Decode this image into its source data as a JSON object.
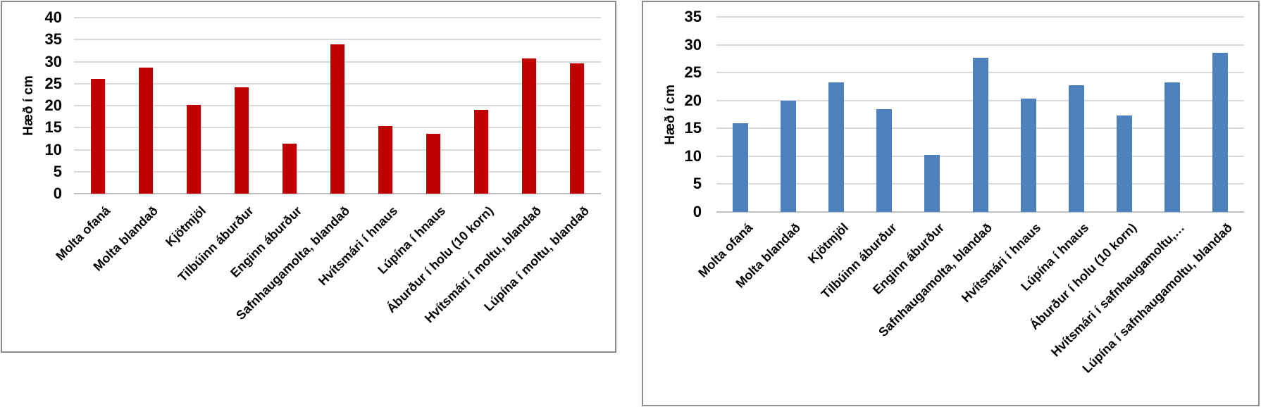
{
  "colors": {
    "red_series": "#c00000",
    "blue_series": "#4f81bd",
    "gridline": "#d9d9d9",
    "axis_line": "#bfbfbf",
    "panel_border": "#8c8c8c",
    "text": "#000000"
  },
  "chart_data": [
    {
      "type": "bar",
      "ylabel": "Hæð í cm",
      "ylim": [
        0,
        40
      ],
      "ytick_step": 5,
      "grid": true,
      "legend": "none",
      "bar_color": "#c00000",
      "categories": [
        "Molta ofaná",
        "Molta blandað",
        "Kjötmjöl",
        "Tilbúinn áburður",
        "Enginn áburður",
        "Safnhaugamolta, blandað",
        "Hvítsmári í hnaus",
        "Lúpína í hnaus",
        "Áburður í holu (10 korn)",
        "Hvítsmári í moltu, blandað",
        "Lúpína í moltu, blandað"
      ],
      "values": [
        26.1,
        28.6,
        20.1,
        24.1,
        11.4,
        34.0,
        15.3,
        13.6,
        19.0,
        30.7,
        29.6
      ]
    },
    {
      "type": "bar",
      "ylabel": "Hæð í cm",
      "ylim": [
        0,
        35
      ],
      "ytick_step": 5,
      "grid": true,
      "legend": "none",
      "bar_color": "#4f81bd",
      "categories": [
        "Molta ofaná",
        "Molta blandað",
        "Kjötmjöl",
        "Tilbúinn áburður",
        "Enginn áburður",
        "Safnhaugamolta, blandað",
        "Hvítsmári í hnaus",
        "Lúpína í hnaus",
        "Áburður í holu (10 korn)",
        "Hvítsmári í safnhaugamoltu,…",
        "Lúpína í safnhaugamoltu, blandað"
      ],
      "values": [
        15.9,
        20.0,
        23.2,
        18.5,
        10.2,
        27.7,
        20.4,
        22.7,
        17.3,
        23.2,
        28.6
      ]
    }
  ]
}
